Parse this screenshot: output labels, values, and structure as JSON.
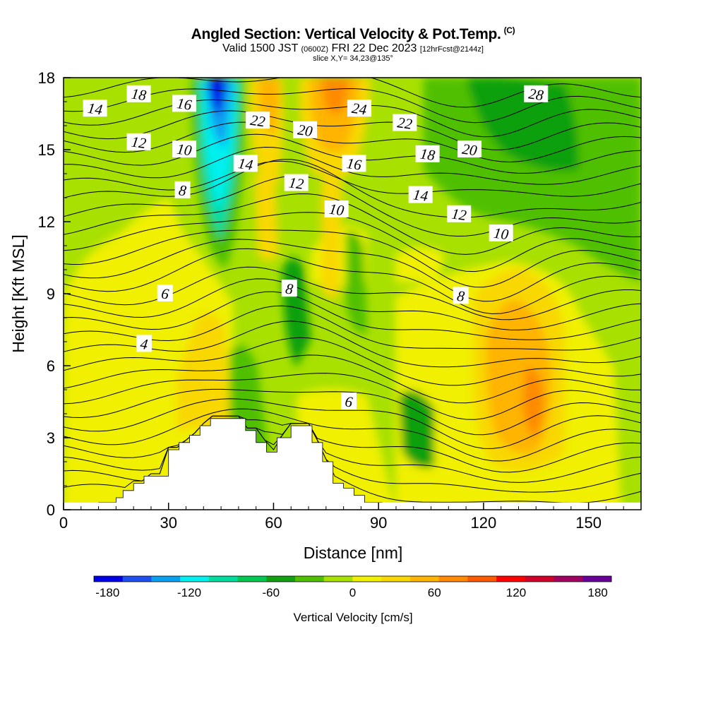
{
  "header": {
    "title": "Angled Section: Vertical Velocity & Pot.Temp.",
    "copyright": "(C)",
    "valid_prefix": "Valid 1500 JST",
    "utc": "(0600Z)",
    "valid_date": "FRI 22 Dec 2023",
    "forecast": "[12hrFcst@2144z]",
    "slice": "slice X,Y= 34,23@135°"
  },
  "chart_data": {
    "type": "heatmap",
    "title": "Angled Section: Vertical Velocity & Pot.Temp.",
    "xlabel": "Distance [nm]",
    "ylabel": "Height [Kft MSL]",
    "xlim": [
      0,
      165
    ],
    "ylim": [
      0,
      18
    ],
    "x_ticks": [
      0,
      30,
      60,
      90,
      120,
      150
    ],
    "y_ticks": [
      0,
      3,
      6,
      9,
      12,
      15,
      18
    ],
    "fill_variable": "Vertical Velocity [cm/s]",
    "colorbar": {
      "label": "Vertical Velocity [cm/s]",
      "ticks": [
        -180,
        -120,
        -60,
        0,
        60,
        120,
        180
      ],
      "min": -190,
      "max": 190,
      "colors": [
        "#0000e6",
        "#1e50f0",
        "#0aa0f0",
        "#00f0f0",
        "#00dca0",
        "#00c850",
        "#10a010",
        "#50c000",
        "#a8e000",
        "#f0f000",
        "#f8d800",
        "#ffb400",
        "#ff8a00",
        "#ff5a00",
        "#ff0000",
        "#d0002a",
        "#a00060",
        "#6a009a"
      ]
    },
    "terrain_profile": {
      "x": [
        0,
        10,
        10,
        15,
        15,
        17,
        17,
        20,
        20,
        23,
        23,
        30,
        30,
        33,
        33,
        36,
        36,
        39,
        39,
        42,
        42,
        52,
        52,
        55,
        55,
        58,
        58,
        61,
        61,
        65,
        65,
        71,
        71,
        74,
        74,
        77,
        77,
        80,
        80,
        83,
        83,
        86,
        86,
        91
      ],
      "y": [
        0,
        0,
        0.3,
        0.3,
        0.5,
        0.5,
        0.8,
        0.8,
        1.1,
        1.1,
        1.4,
        1.4,
        2.5,
        2.5,
        2.8,
        2.8,
        3.1,
        3.1,
        3.5,
        3.5,
        3.8,
        3.8,
        3.3,
        3.3,
        2.8,
        2.8,
        2.4,
        2.4,
        3.0,
        3.0,
        3.5,
        3.5,
        2.8,
        2.8,
        2.0,
        2.0,
        1.1,
        1.1,
        0.9,
        0.9,
        0.6,
        0.6,
        0.3,
        0.3
      ]
    },
    "contour_variable": "Potential temperature",
    "contour_labels": [
      {
        "value": "14",
        "x": 9,
        "y": 16.7
      },
      {
        "value": "18",
        "x": 21.5,
        "y": 17.3
      },
      {
        "value": "16",
        "x": 34.5,
        "y": 16.9
      },
      {
        "value": "22",
        "x": 55.5,
        "y": 16.2
      },
      {
        "value": "24",
        "x": 84.5,
        "y": 16.7
      },
      {
        "value": "22",
        "x": 97.5,
        "y": 16.1
      },
      {
        "value": "28",
        "x": 135,
        "y": 17.3
      },
      {
        "value": "12",
        "x": 21.5,
        "y": 15.3
      },
      {
        "value": "10",
        "x": 34.5,
        "y": 15.0
      },
      {
        "value": "20",
        "x": 69,
        "y": 15.8
      },
      {
        "value": "14",
        "x": 52,
        "y": 14.4
      },
      {
        "value": "16",
        "x": 83,
        "y": 14.4
      },
      {
        "value": "18",
        "x": 104,
        "y": 14.8
      },
      {
        "value": "20",
        "x": 116,
        "y": 15.0
      },
      {
        "value": "8",
        "x": 34,
        "y": 13.3
      },
      {
        "value": "12",
        "x": 66.5,
        "y": 13.6
      },
      {
        "value": "14",
        "x": 102,
        "y": 13.1
      },
      {
        "value": "10",
        "x": 78,
        "y": 12.5
      },
      {
        "value": "12",
        "x": 113,
        "y": 12.3
      },
      {
        "value": "10",
        "x": 125,
        "y": 11.5
      },
      {
        "value": "6",
        "x": 29,
        "y": 9.0
      },
      {
        "value": "8",
        "x": 64.5,
        "y": 9.2
      },
      {
        "value": "8",
        "x": 113.5,
        "y": 8.9
      },
      {
        "value": "4",
        "x": 23,
        "y": 6.9
      },
      {
        "value": "6",
        "x": 81.5,
        "y": 4.5
      }
    ]
  }
}
